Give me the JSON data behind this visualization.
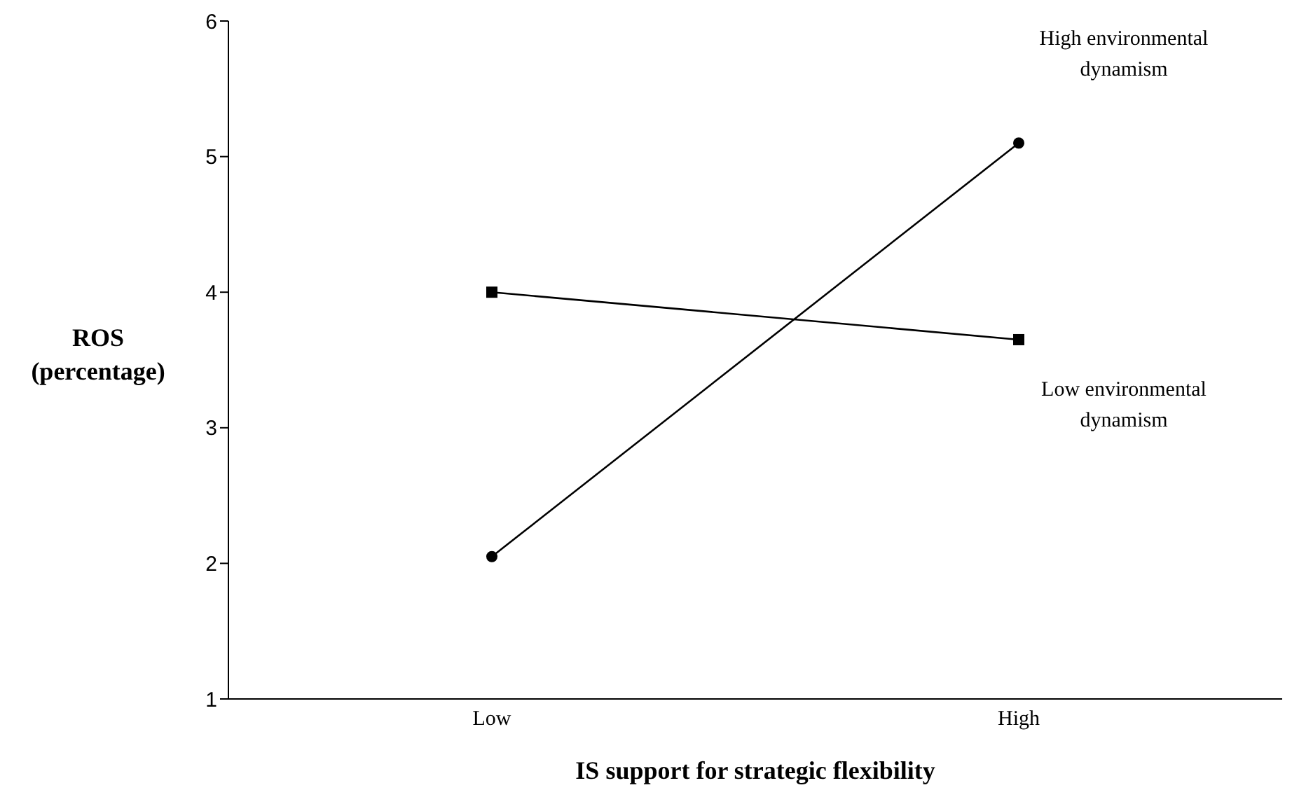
{
  "chart_data": {
    "type": "line",
    "xlabel": "IS support for strategic flexibility",
    "ylabel": "ROS\n(percentage)",
    "categories": [
      "Low",
      "High"
    ],
    "ylim": [
      1,
      6
    ],
    "yticks": [
      1,
      2,
      3,
      4,
      5,
      6
    ],
    "grid": false,
    "series": [
      {
        "name": "High environmental dynamism",
        "color": "#000000",
        "marker": "circle",
        "values": [
          2.05,
          5.1
        ]
      },
      {
        "name": "Low environmental dynamism",
        "color": "#000000",
        "marker": "square",
        "values": [
          4.0,
          3.65
        ]
      }
    ]
  }
}
